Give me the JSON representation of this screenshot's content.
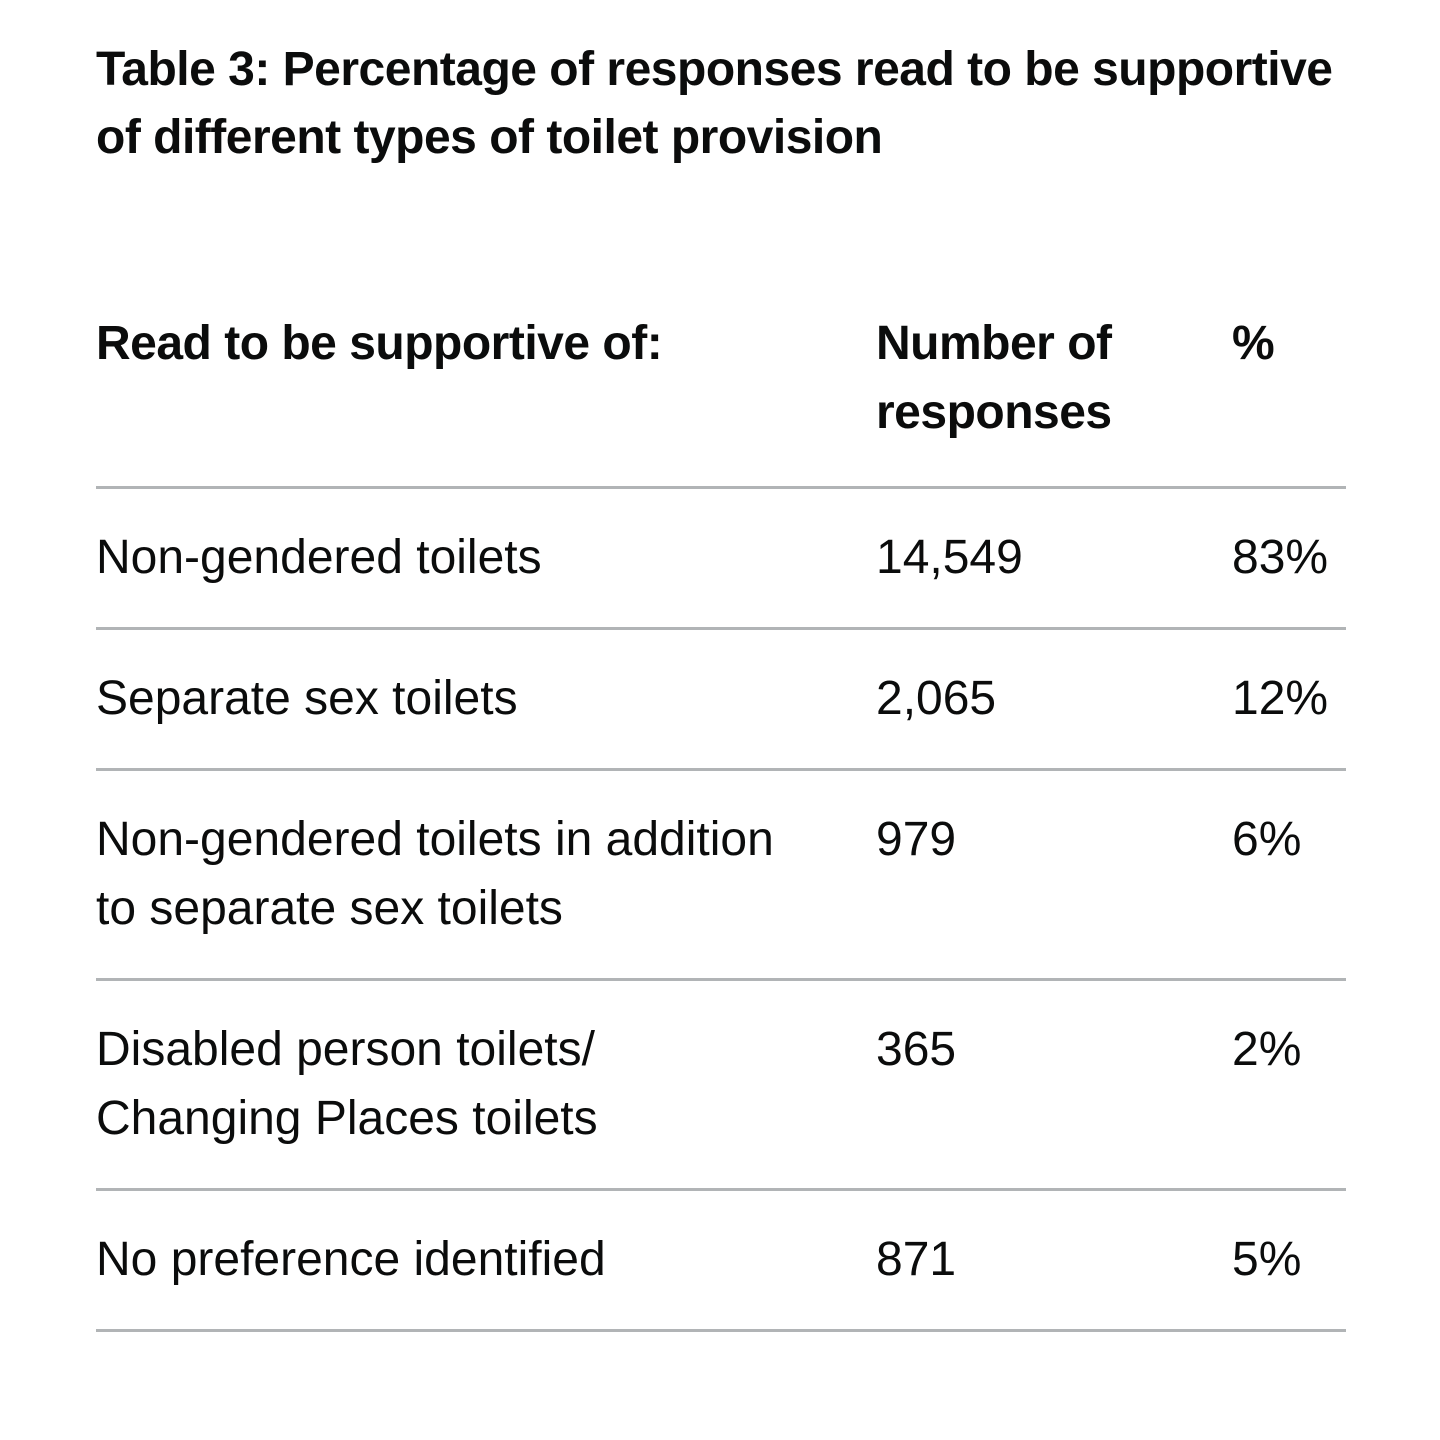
{
  "caption": "Table 3: Percentage of responses read to be supportive of different types of toilet provision",
  "table": {
    "headers": [
      "Read to be supportive of:",
      "Number of responses",
      "%"
    ],
    "rows": [
      {
        "type": "Non-gendered toilets",
        "count": "14,549",
        "percent": "83%"
      },
      {
        "type": "Separate sex toilets",
        "count": "2,065",
        "percent": "12%"
      },
      {
        "type": "Non-gendered toilets in addition to separate sex toilets",
        "count": "979",
        "percent": "6%"
      },
      {
        "type": "Disabled person toilets/ Changing Places toilets",
        "count": "365",
        "percent": "2%"
      },
      {
        "type": "No preference identified",
        "count": "871",
        "percent": "5%"
      }
    ]
  },
  "colors": {
    "text": "#0b0c0c",
    "rule": "#b1b4b6",
    "background": "#ffffff"
  }
}
